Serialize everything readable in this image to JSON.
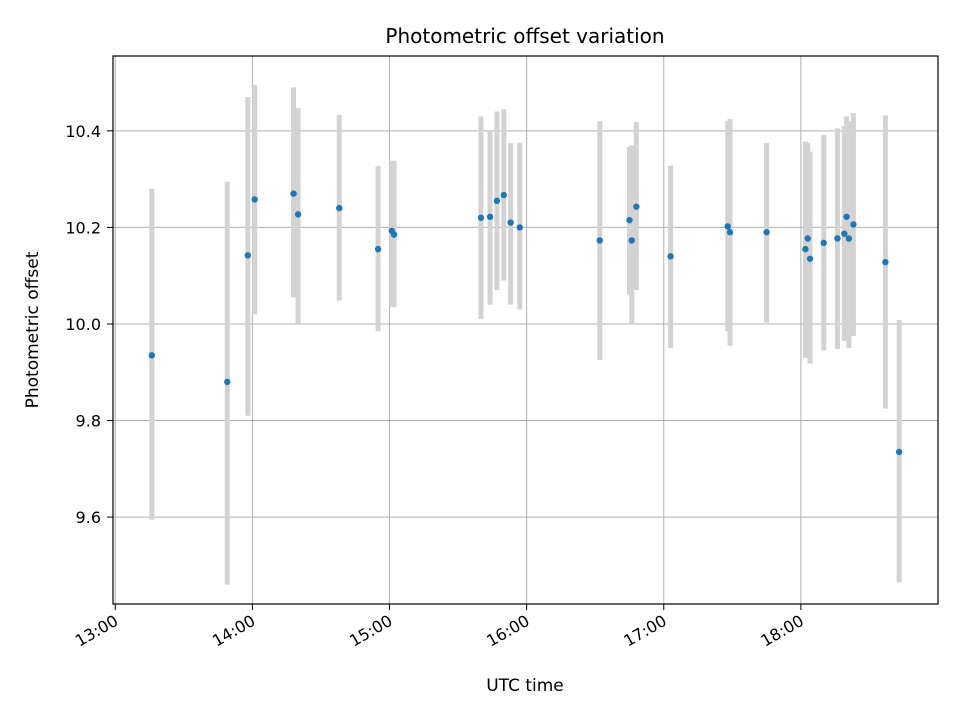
{
  "chart_data": {
    "type": "scatter",
    "title": "Photometric offset variation",
    "xlabel": "UTC time",
    "ylabel": "Photometric offset",
    "x_ticks": [
      "13:00",
      "14:00",
      "15:00",
      "16:00",
      "17:00",
      "18:00"
    ],
    "y_ticks": [
      "9.6",
      "9.8",
      "10.0",
      "10.2",
      "10.4"
    ],
    "xlim": [
      "12:59",
      "19:00"
    ],
    "ylim": [
      9.42,
      10.555
    ],
    "grid": true,
    "colors": {
      "point": "#1f77b4",
      "errorbar": "#d3d3d3",
      "grid": "#b0b0b0"
    },
    "points": [
      {
        "x": "13:16",
        "y": 9.935,
        "low": 9.595,
        "high": 10.28
      },
      {
        "x": "13:49",
        "y": 9.88,
        "low": 9.46,
        "high": 10.295
      },
      {
        "x": "13:58",
        "y": 10.142,
        "low": 9.81,
        "high": 10.47
      },
      {
        "x": "14:01",
        "y": 10.258,
        "low": 10.02,
        "high": 10.495
      },
      {
        "x": "14:18",
        "y": 10.27,
        "low": 10.055,
        "high": 10.49
      },
      {
        "x": "14:20",
        "y": 10.227,
        "low": 10.0,
        "high": 10.447
      },
      {
        "x": "14:38",
        "y": 10.24,
        "low": 10.048,
        "high": 10.433
      },
      {
        "x": "14:55",
        "y": 10.155,
        "low": 9.985,
        "high": 10.327
      },
      {
        "x": "15:01",
        "y": 10.193,
        "low": 10.035,
        "high": 10.338
      },
      {
        "x": "15:02",
        "y": 10.185,
        "low": 10.035,
        "high": 10.338
      },
      {
        "x": "15:40",
        "y": 10.22,
        "low": 10.01,
        "high": 10.43
      },
      {
        "x": "15:44",
        "y": 10.222,
        "low": 10.04,
        "high": 10.4
      },
      {
        "x": "15:47",
        "y": 10.255,
        "low": 10.07,
        "high": 10.44
      },
      {
        "x": "15:50",
        "y": 10.267,
        "low": 10.09,
        "high": 10.445
      },
      {
        "x": "15:53",
        "y": 10.21,
        "low": 10.04,
        "high": 10.375
      },
      {
        "x": "15:57",
        "y": 10.2,
        "low": 10.03,
        "high": 10.375
      },
      {
        "x": "16:32",
        "y": 10.173,
        "low": 9.925,
        "high": 10.42
      },
      {
        "x": "16:45",
        "y": 10.215,
        "low": 10.06,
        "high": 10.367
      },
      {
        "x": "16:46",
        "y": 10.173,
        "low": 10.0,
        "high": 10.37
      },
      {
        "x": "16:48",
        "y": 10.243,
        "low": 10.07,
        "high": 10.418
      },
      {
        "x": "17:03",
        "y": 10.14,
        "low": 9.95,
        "high": 10.328
      },
      {
        "x": "17:28",
        "y": 10.202,
        "low": 9.985,
        "high": 10.42
      },
      {
        "x": "17:29",
        "y": 10.19,
        "low": 9.955,
        "high": 10.425
      },
      {
        "x": "17:45",
        "y": 10.19,
        "low": 10.003,
        "high": 10.375
      },
      {
        "x": "18:02",
        "y": 10.155,
        "low": 9.93,
        "high": 10.378
      },
      {
        "x": "18:03",
        "y": 10.177,
        "low": 9.935,
        "high": 10.375
      },
      {
        "x": "18:04",
        "y": 10.135,
        "low": 9.918,
        "high": 10.357
      },
      {
        "x": "18:10",
        "y": 10.168,
        "low": 9.945,
        "high": 10.392
      },
      {
        "x": "18:16",
        "y": 10.177,
        "low": 9.948,
        "high": 10.405
      },
      {
        "x": "18:19",
        "y": 10.187,
        "low": 9.965,
        "high": 10.41
      },
      {
        "x": "18:20",
        "y": 10.222,
        "low": 10.0,
        "high": 10.43
      },
      {
        "x": "18:21",
        "y": 10.177,
        "low": 9.95,
        "high": 10.42
      },
      {
        "x": "18:23",
        "y": 10.206,
        "low": 9.975,
        "high": 10.437
      },
      {
        "x": "18:37",
        "y": 10.128,
        "low": 9.825,
        "high": 10.432
      },
      {
        "x": "18:43",
        "y": 9.735,
        "low": 9.465,
        "high": 10.008
      }
    ]
  }
}
